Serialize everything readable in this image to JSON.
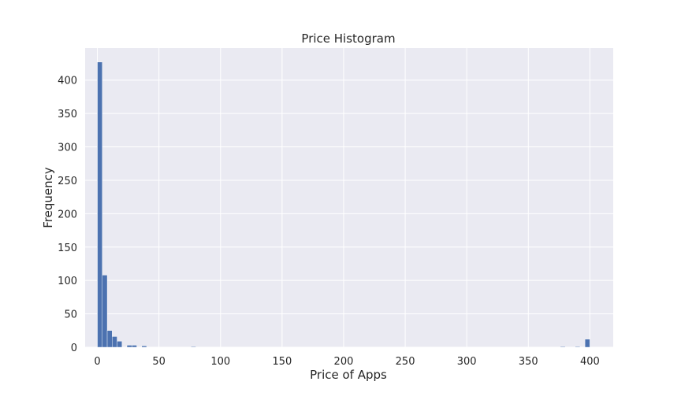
{
  "chart_data": {
    "type": "bar",
    "title": "Price Histogram",
    "xlabel": "Price of Apps",
    "ylabel": "Frequency",
    "xlim": [
      -9.95,
      418.95
    ],
    "ylim": [
      0,
      448
    ],
    "x_ticks": [
      0,
      50,
      100,
      150,
      200,
      250,
      300,
      350,
      400
    ],
    "y_ticks": [
      0,
      50,
      100,
      150,
      200,
      250,
      300,
      350,
      400
    ],
    "grid": true,
    "colors": {
      "bar": "#4c72b0",
      "plot_background": "#eaeaf2",
      "grid": "#ffffff"
    },
    "bins": [
      {
        "x0": 0,
        "x1": 4,
        "count": 427
      },
      {
        "x0": 4,
        "x1": 8,
        "count": 108
      },
      {
        "x0": 8,
        "x1": 12,
        "count": 25
      },
      {
        "x0": 12,
        "x1": 16,
        "count": 16
      },
      {
        "x0": 16,
        "x1": 20,
        "count": 9
      },
      {
        "x0": 24,
        "x1": 28,
        "count": 3
      },
      {
        "x0": 28,
        "x1": 32,
        "count": 3
      },
      {
        "x0": 36,
        "x1": 40,
        "count": 2
      },
      {
        "x0": 76,
        "x1": 80,
        "count": 1
      },
      {
        "x0": 376,
        "x1": 380,
        "count": 1
      },
      {
        "x0": 388,
        "x1": 392,
        "count": 1
      },
      {
        "x0": 396,
        "x1": 400,
        "count": 12
      }
    ]
  }
}
